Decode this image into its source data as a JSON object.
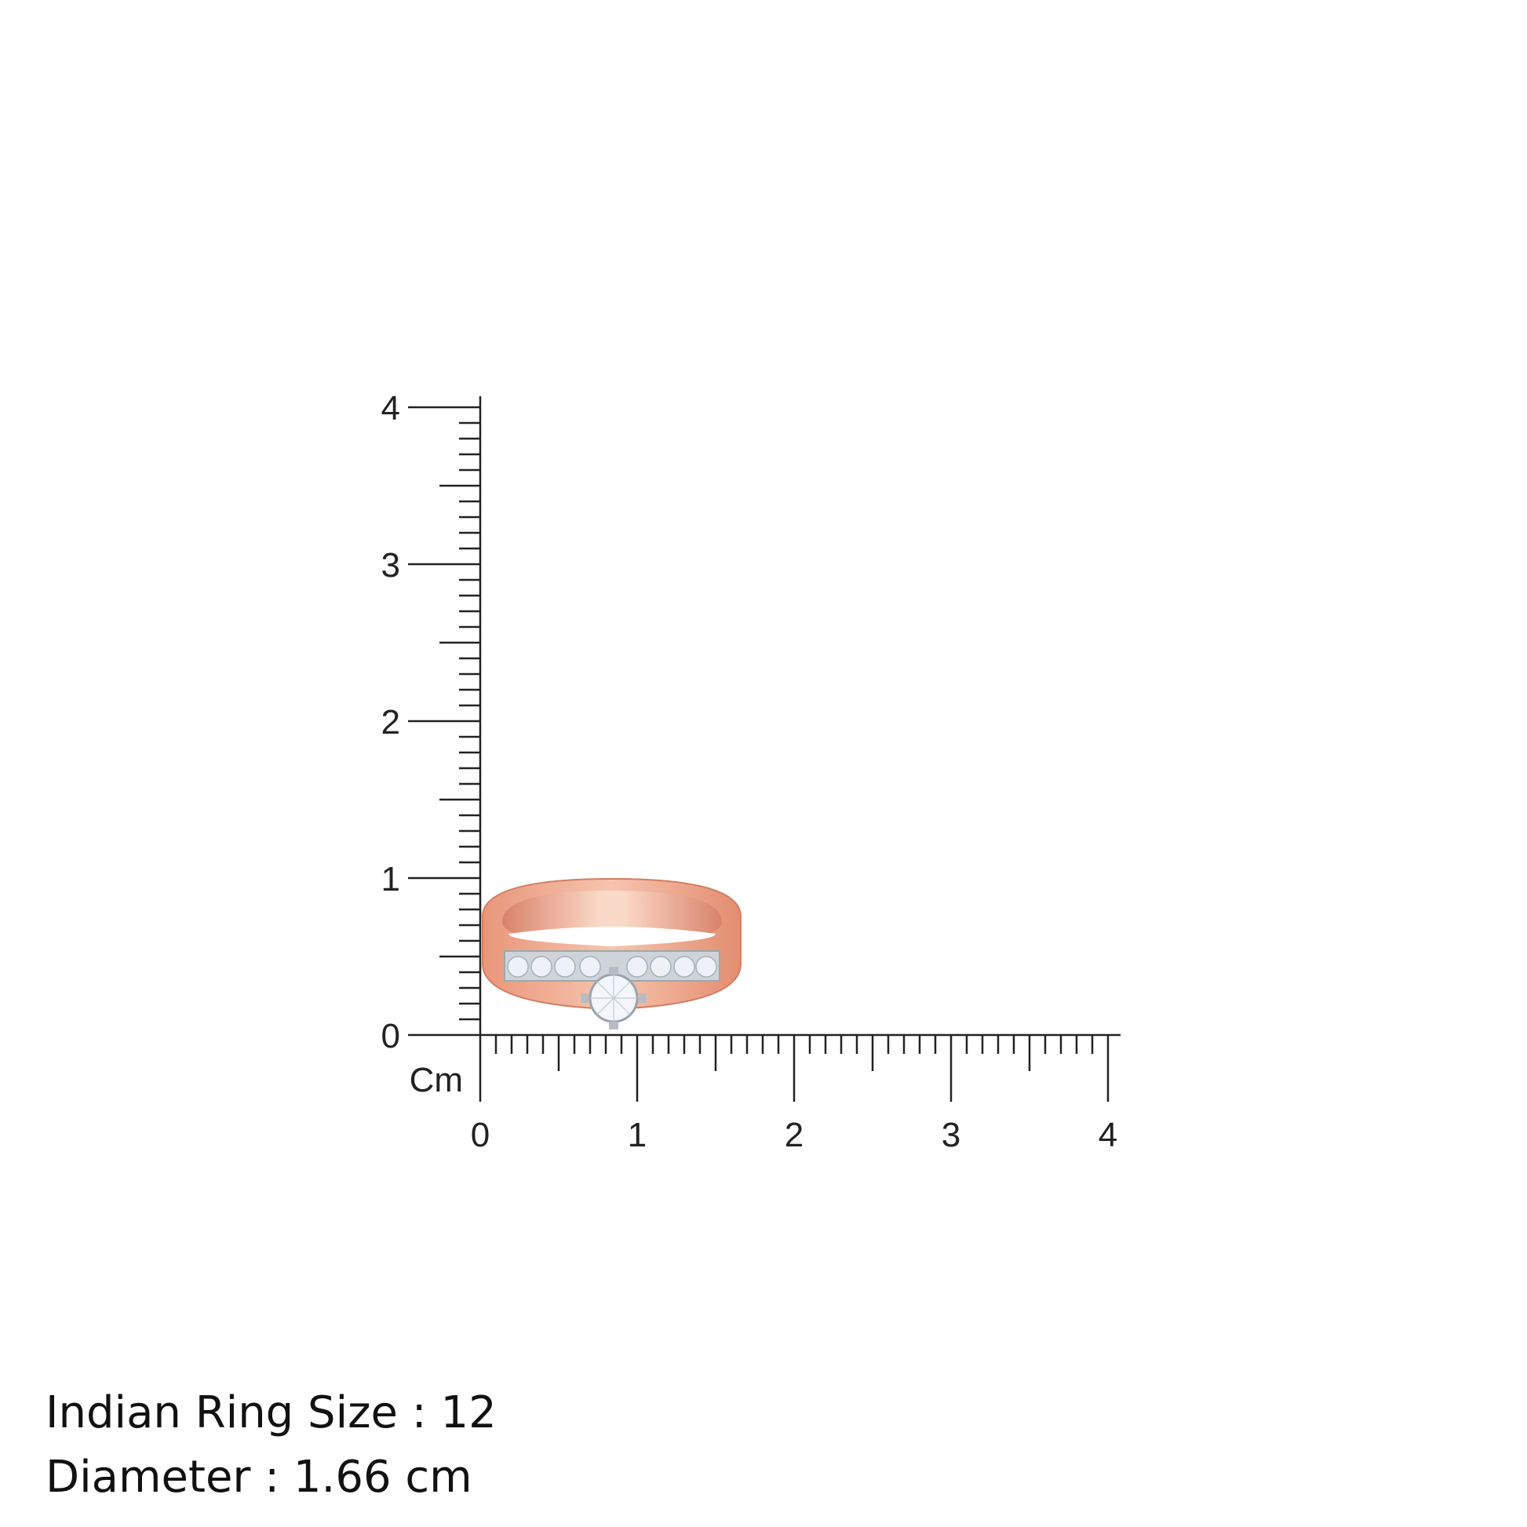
{
  "scale": {
    "unit_label": "Cm",
    "x_ticks": [
      "0",
      "1",
      "2",
      "3",
      "4"
    ],
    "y_ticks": [
      "0",
      "1",
      "2",
      "3",
      "4"
    ],
    "range_cm": [
      0,
      4
    ],
    "minor_division_cm": 0.1
  },
  "product": {
    "image": "rose-gold-ring-icon",
    "metal_color": "#e8a084",
    "stone_color": "#eef2f8"
  },
  "info": {
    "ring_size": "Indian Ring Size : 12",
    "diameter": "Diameter : 1.66 cm"
  }
}
